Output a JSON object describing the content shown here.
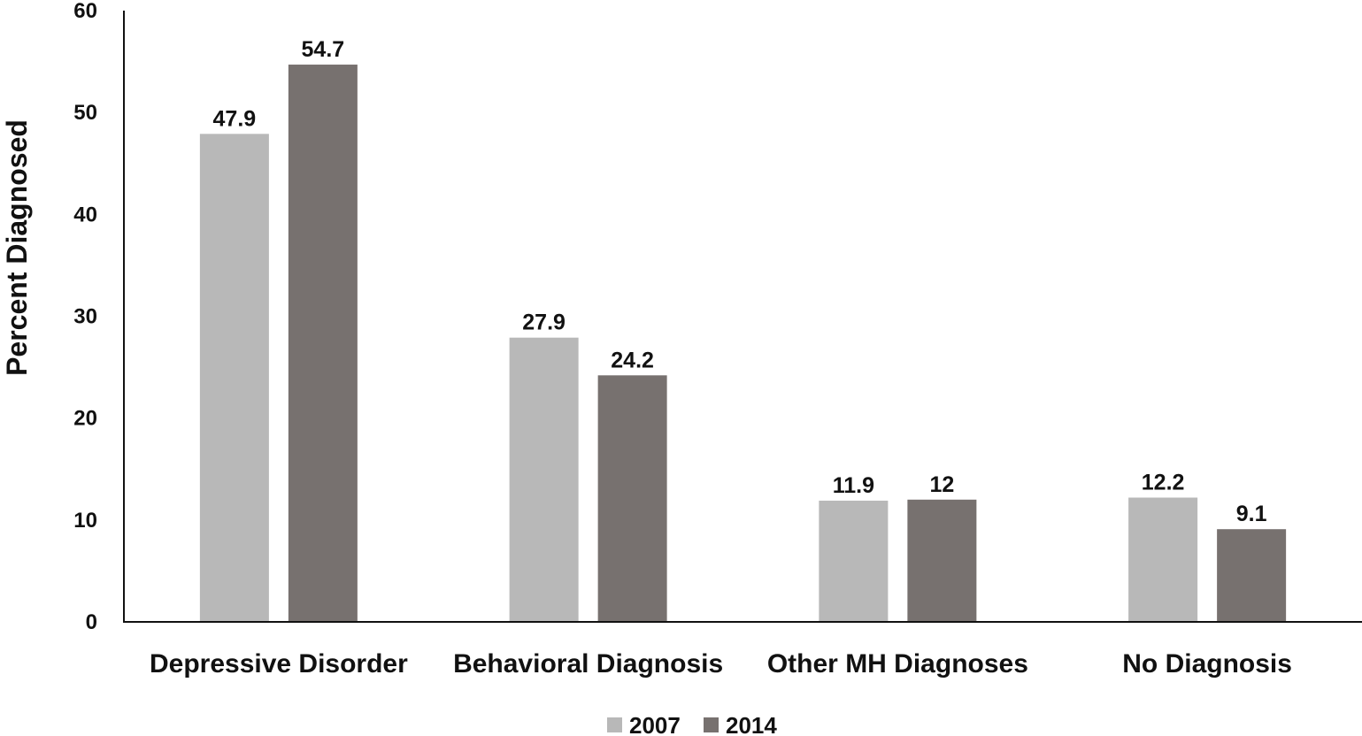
{
  "chart_data": {
    "type": "bar",
    "title": "",
    "xlabel": "",
    "ylabel": "Percent Diagnosed",
    "ylim": [
      0,
      60
    ],
    "yticks": [
      0,
      10,
      20,
      30,
      40,
      50,
      60
    ],
    "grid": false,
    "legend": "bottom",
    "categories": [
      "Depressive Disorder",
      "Behavioral Diagnosis",
      "Other MH Diagnoses",
      "No Diagnosis"
    ],
    "series": [
      {
        "name": "2007",
        "color": "#b8b8b8",
        "values": [
          47.9,
          27.9,
          11.9,
          12.2
        ],
        "labels": [
          "47.9",
          "27.9",
          "11.9",
          "12.2"
        ]
      },
      {
        "name": "2014",
        "color": "#77716f",
        "values": [
          54.7,
          24.2,
          12,
          9.1
        ],
        "labels": [
          "54.7",
          "24.2",
          "12",
          "9.1"
        ]
      }
    ]
  }
}
